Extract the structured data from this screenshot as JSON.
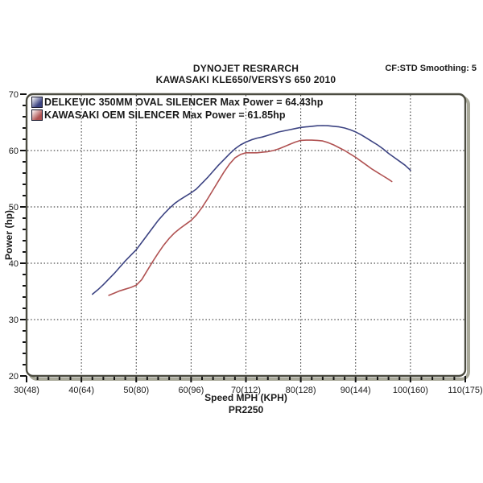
{
  "header": {
    "title_line1": "DYNOJET RESRARCH",
    "title_line2": "KAWASAKI KLE650/VERSYS 650 2010",
    "corner_note": "CF:STD Smoothing: 5"
  },
  "footer": {
    "run_code": "PR2250"
  },
  "chart_data": {
    "type": "line",
    "title": "DYNOJET RESRARCH",
    "subtitle": "KAWASAKI KLE650/VERSYS 650 2010",
    "xlabel": "Speed MPH (KPH)",
    "ylabel": "Power (hp)",
    "xlim": [
      30,
      110
    ],
    "ylim": [
      20,
      70
    ],
    "x_minor_step": 2,
    "y_minor_step": 2,
    "x_ticks": [
      {
        "v": 30,
        "label": "30(48)"
      },
      {
        "v": 40,
        "label": "40(64)"
      },
      {
        "v": 50,
        "label": "50(80)"
      },
      {
        "v": 60,
        "label": "60(96)"
      },
      {
        "v": 70,
        "label": "70(112)"
      },
      {
        "v": 80,
        "label": "80(128)"
      },
      {
        "v": 90,
        "label": "90(144)"
      },
      {
        "v": 100,
        "label": "100(160)"
      },
      {
        "v": 110,
        "label": "110(175)"
      }
    ],
    "y_ticks": [
      {
        "v": 20,
        "label": "20"
      },
      {
        "v": 30,
        "label": "30"
      },
      {
        "v": 40,
        "label": "40"
      },
      {
        "v": 50,
        "label": "50"
      },
      {
        "v": 60,
        "label": "60"
      },
      {
        "v": 70,
        "label": "70"
      }
    ],
    "grid": {
      "style": "dotted",
      "x_values": [
        40,
        50,
        60,
        70,
        80,
        90,
        100
      ],
      "y_values": [
        30,
        40,
        50,
        60
      ]
    },
    "legend_position": "top-left-inside",
    "series": [
      {
        "name": "DELKEVIC 350MM OVAL SILENCER Max Power = 64.43hp",
        "max_power_hp": 64.43,
        "color": "#3c4382",
        "points": [
          [
            42,
            34.5
          ],
          [
            43,
            35.3
          ],
          [
            44,
            36.2
          ],
          [
            45,
            37.2
          ],
          [
            46,
            38.2
          ],
          [
            47,
            39.3
          ],
          [
            48,
            40.4
          ],
          [
            49,
            41.4
          ],
          [
            50,
            42.4
          ],
          [
            51,
            43.7
          ],
          [
            52,
            45.0
          ],
          [
            53,
            46.3
          ],
          [
            54,
            47.6
          ],
          [
            55,
            48.7
          ],
          [
            56,
            49.7
          ],
          [
            57,
            50.6
          ],
          [
            58,
            51.3
          ],
          [
            59,
            51.9
          ],
          [
            60,
            52.5
          ],
          [
            61,
            53.2
          ],
          [
            62,
            54.2
          ],
          [
            63,
            55.2
          ],
          [
            64,
            56.3
          ],
          [
            65,
            57.4
          ],
          [
            66,
            58.4
          ],
          [
            67,
            59.4
          ],
          [
            68,
            60.3
          ],
          [
            69,
            61.0
          ],
          [
            70,
            61.5
          ],
          [
            71,
            61.9
          ],
          [
            72,
            62.2
          ],
          [
            73,
            62.4
          ],
          [
            74,
            62.7
          ],
          [
            75,
            63.0
          ],
          [
            76,
            63.3
          ],
          [
            77,
            63.5
          ],
          [
            78,
            63.7
          ],
          [
            79,
            63.9
          ],
          [
            80,
            64.1
          ],
          [
            81,
            64.2
          ],
          [
            82,
            64.3
          ],
          [
            83,
            64.4
          ],
          [
            84,
            64.43
          ],
          [
            85,
            64.4
          ],
          [
            86,
            64.3
          ],
          [
            87,
            64.2
          ],
          [
            88,
            64.0
          ],
          [
            89,
            63.7
          ],
          [
            90,
            63.3
          ],
          [
            91,
            62.8
          ],
          [
            92,
            62.2
          ],
          [
            93,
            61.6
          ],
          [
            94,
            61.0
          ],
          [
            95,
            60.3
          ],
          [
            96,
            59.5
          ],
          [
            97,
            58.8
          ],
          [
            98,
            58.1
          ],
          [
            99,
            57.4
          ],
          [
            100,
            56.5
          ]
        ]
      },
      {
        "name": "KAWASAKI OEM SILENCER Max Power = 61.85hp",
        "max_power_hp": 61.85,
        "color": "#b05252",
        "points": [
          [
            45,
            34.3
          ],
          [
            46,
            34.7
          ],
          [
            47,
            35.1
          ],
          [
            48,
            35.4
          ],
          [
            49,
            35.7
          ],
          [
            50,
            36.1
          ],
          [
            51,
            37.1
          ],
          [
            52,
            38.7
          ],
          [
            53,
            40.3
          ],
          [
            54,
            41.8
          ],
          [
            55,
            43.2
          ],
          [
            56,
            44.4
          ],
          [
            57,
            45.4
          ],
          [
            58,
            46.2
          ],
          [
            59,
            46.9
          ],
          [
            60,
            47.6
          ],
          [
            61,
            48.6
          ],
          [
            62,
            49.9
          ],
          [
            63,
            51.4
          ],
          [
            64,
            53.0
          ],
          [
            65,
            54.6
          ],
          [
            66,
            56.2
          ],
          [
            67,
            57.6
          ],
          [
            68,
            58.7
          ],
          [
            69,
            59.3
          ],
          [
            70,
            59.6
          ],
          [
            71,
            59.6
          ],
          [
            72,
            59.6
          ],
          [
            73,
            59.7
          ],
          [
            74,
            59.8
          ],
          [
            75,
            60.0
          ],
          [
            76,
            60.3
          ],
          [
            77,
            60.7
          ],
          [
            78,
            61.1
          ],
          [
            79,
            61.5
          ],
          [
            80,
            61.8
          ],
          [
            81,
            61.85
          ],
          [
            82,
            61.85
          ],
          [
            83,
            61.8
          ],
          [
            84,
            61.7
          ],
          [
            85,
            61.4
          ],
          [
            86,
            61.0
          ],
          [
            87,
            60.5
          ],
          [
            88,
            60.0
          ],
          [
            89,
            59.4
          ],
          [
            90,
            58.8
          ],
          [
            91,
            58.1
          ],
          [
            92,
            57.4
          ],
          [
            93,
            56.7
          ],
          [
            94,
            56.1
          ],
          [
            95,
            55.5
          ],
          [
            96,
            54.9
          ],
          [
            96.6,
            54.5
          ]
        ]
      }
    ],
    "frame_color": "#4c4c41",
    "frame_shadow_color": "#a8a899",
    "grid_color": "#222222",
    "text_color": "#1a1a1a"
  }
}
